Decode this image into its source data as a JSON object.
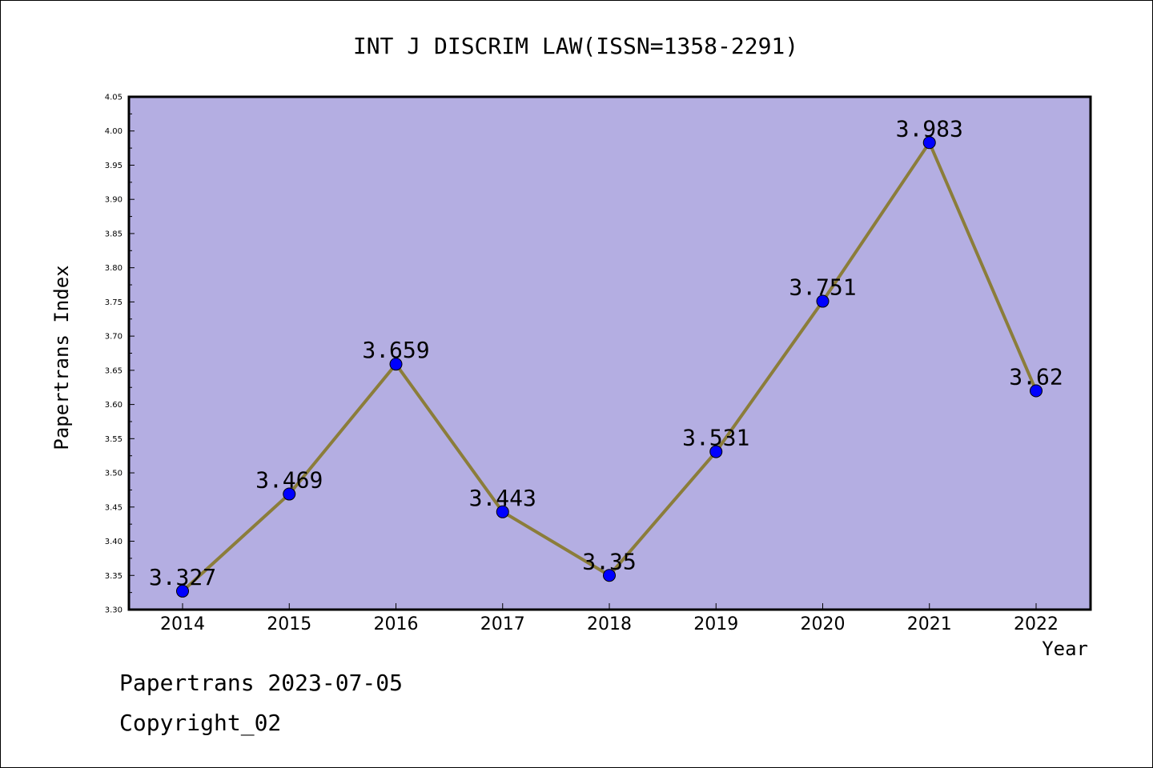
{
  "chart_data": {
    "type": "line",
    "title": "INT J DISCRIM LAW(ISSN=1358-2291)",
    "xlabel": "Year",
    "ylabel": "Papertrans Index",
    "categories": [
      "2014",
      "2015",
      "2016",
      "2017",
      "2018",
      "2019",
      "2020",
      "2021",
      "2022"
    ],
    "series": [
      {
        "values": [
          3.327,
          3.469,
          3.659,
          3.443,
          3.35,
          3.531,
          3.751,
          3.983,
          3.62
        ],
        "labels": [
          "3.327",
          "3.469",
          "3.659",
          "3.443",
          "3.35",
          "3.531",
          "3.751",
          "3.983",
          "3.62"
        ],
        "line_color": "#8B7D3A",
        "marker_color": "#0000FF"
      }
    ],
    "ylim": [
      3.3,
      4.05
    ],
    "yticks": [
      "3.30",
      "3.35",
      "3.40",
      "3.45",
      "3.50",
      "3.55",
      "3.60",
      "3.65",
      "3.70",
      "3.75",
      "3.80",
      "3.85",
      "3.90",
      "3.95",
      "4.00",
      "4.05"
    ],
    "plot_background": "#B4AEE2",
    "grid": false,
    "legend": "none"
  },
  "footer": {
    "line1": "Papertrans 2023-07-05",
    "line2": "Copyright_02"
  }
}
